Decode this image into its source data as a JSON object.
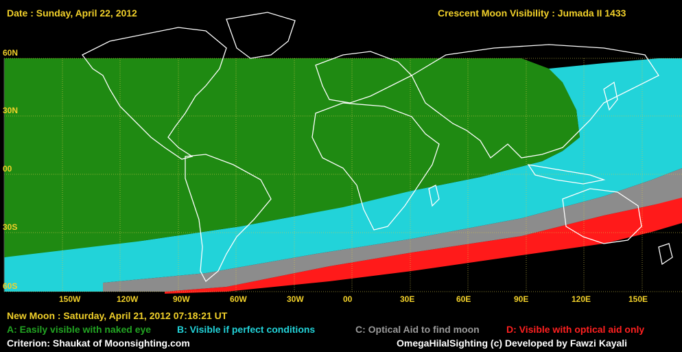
{
  "header": {
    "date": "Date : Sunday, April 22, 2012",
    "title": "Crescent Moon Visibility : Jumada II  1433"
  },
  "grid": {
    "lat_labels": [
      "60N",
      "30N",
      "00",
      "30S",
      "60S"
    ],
    "lon_labels": [
      "150W",
      "120W",
      "90W",
      "60W",
      "30W",
      "00",
      "30E",
      "60E",
      "90E",
      "120E",
      "150E"
    ]
  },
  "footer": {
    "new_moon": "New Moon : Saturday, April 21, 2012  07:18:21  UT",
    "legend": {
      "a": "A: Easily visible with naked eye",
      "b": "B: Visible if perfect conditions",
      "c": "C: Optical Aid to find moon",
      "d": "D: Visible with optical aid only"
    },
    "criterion": "Criterion: Shaukat of Moonsighting.com",
    "credit": "OmegaHilalSighting  (c)  Developed by Fawzi Kayali"
  },
  "colors": {
    "zone_a": "#1f8a12",
    "zone_b": "#22d3d9",
    "zone_c": "#8c8c8c",
    "zone_d": "#ff1a1a",
    "background": "#000000",
    "text_yellow": "#f2d12a"
  }
}
